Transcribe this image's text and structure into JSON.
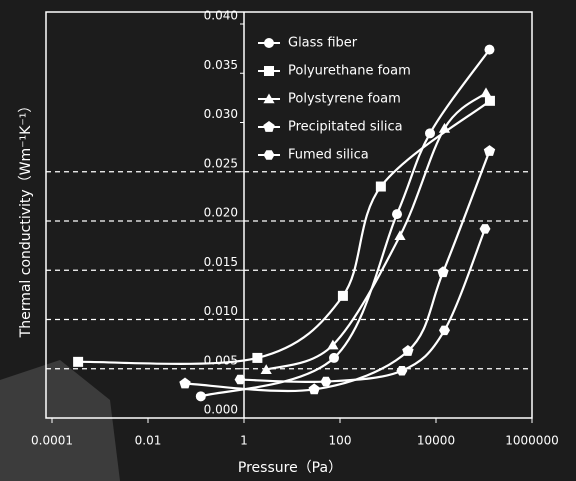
{
  "chart_data": {
    "type": "line",
    "x_label": "Pressure（Pa）",
    "y_label": "Thermal conductivity（Wm⁻¹K⁻¹）",
    "xscale": "log",
    "xlim": [
      0.0001,
      1000000
    ],
    "xticks": [
      0.0001,
      0.01,
      1,
      100,
      10000,
      1000000
    ],
    "ylim": [
      0,
      0.04
    ],
    "yticks": [
      {
        "value": 0,
        "label": "0.000"
      },
      0.005,
      {
        "value": 0.01,
        "label": "0.010"
      },
      0.015,
      {
        "value": 0.02,
        "label": "0.020"
      },
      0.025,
      {
        "value": 0.03,
        "label": "0.030"
      },
      0.035,
      {
        "value": 0.04,
        "label": "0.040"
      }
    ],
    "grid_lines": [
      0.005,
      0.01,
      0.015,
      0.02,
      0.025
    ],
    "yaxis_at": 1,
    "legend": "upper left",
    "series": [
      {
        "name": "Glass fiber",
        "color": "#ffffff",
        "marker": "circle",
        "x": [
          0.126,
          75,
          1540,
          7500,
          130000
        ],
        "values": [
          0.0022,
          0.0061,
          0.0207,
          0.0289,
          0.0374
        ]
      },
      {
        "name": "Polyurethane foam",
        "color": "#ffffff",
        "marker": "square",
        "x": [
          0.00035,
          1.9,
          115,
          710,
          133000
        ],
        "values": [
          0.0057,
          0.0061,
          0.0124,
          0.0235,
          0.0322
        ]
      },
      {
        "name": "Polystyrene foam",
        "color": "#ffffff",
        "marker": "triangle",
        "x": [
          2.9,
          71,
          1780,
          15000,
          110000
        ],
        "values": [
          0.0049,
          0.0074,
          0.0185,
          0.0294,
          0.033
        ]
      },
      {
        "name": "Precipitated silica",
        "color": "#ffffff",
        "marker": "pentagon",
        "x": [
          0.059,
          29,
          2600,
          14000,
          130000
        ],
        "values": [
          0.0035,
          0.0029,
          0.0068,
          0.0148,
          0.0271
        ]
      },
      {
        "name": "Fumed silica",
        "color": "#ffffff",
        "marker": "hexagon",
        "x": [
          0.83,
          51,
          1950,
          15000,
          105000
        ],
        "values": [
          0.0039,
          0.0037,
          0.0048,
          0.0089,
          0.0192
        ]
      }
    ]
  }
}
